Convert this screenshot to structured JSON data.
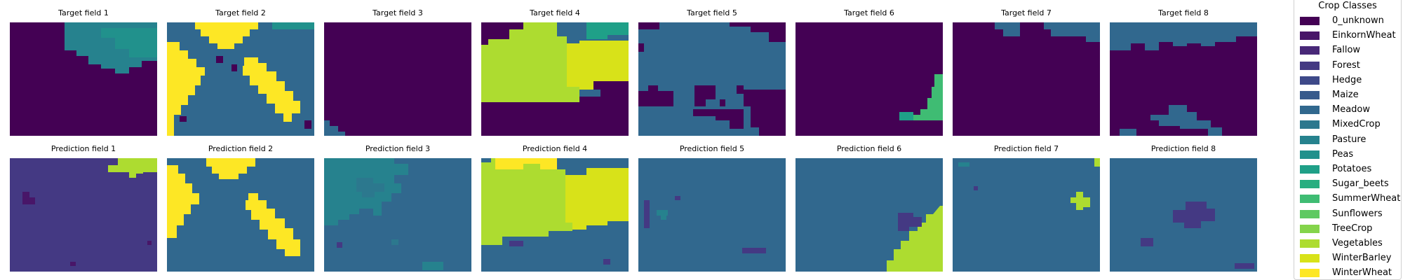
{
  "targets": [
    "Target field 1",
    "Target field 2",
    "Target field 3",
    "Target field 4",
    "Target field 5",
    "Target field 6",
    "Target field 7",
    "Target field 8"
  ],
  "predictions": [
    "Prediction field 1",
    "Prediction field 2",
    "Prediction field 3",
    "Prediction field 4",
    "Prediction field 5",
    "Prediction field 6",
    "Prediction field 7",
    "Prediction field 8"
  ],
  "legend": {
    "title": "Crop Classes",
    "items": [
      {
        "label": "0_unknown",
        "color": "#440154"
      },
      {
        "label": "EinkornWheat",
        "color": "#481668"
      },
      {
        "label": "Fallow",
        "color": "#482878"
      },
      {
        "label": "Forest",
        "color": "#443983"
      },
      {
        "label": "Hedge",
        "color": "#3e4989"
      },
      {
        "label": "Maize",
        "color": "#375a8c"
      },
      {
        "label": "Meadow",
        "color": "#31688e"
      },
      {
        "label": "MixedCrop",
        "color": "#2c788e"
      },
      {
        "label": "Pasture",
        "color": "#26828e"
      },
      {
        "label": "Peas",
        "color": "#21918c"
      },
      {
        "label": "Potatoes",
        "color": "#1fa088"
      },
      {
        "label": "Sugar_beets",
        "color": "#28ae80"
      },
      {
        "label": "SummerWheat",
        "color": "#3fbc73"
      },
      {
        "label": "Sunflowers",
        "color": "#5ec962"
      },
      {
        "label": "TreeCrop",
        "color": "#84d44b"
      },
      {
        "label": "Vegetables",
        "color": "#addc30"
      },
      {
        "label": "WinterBarley",
        "color": "#d8e219"
      },
      {
        "label": "WinterWheat",
        "color": "#fde725"
      }
    ]
  }
}
